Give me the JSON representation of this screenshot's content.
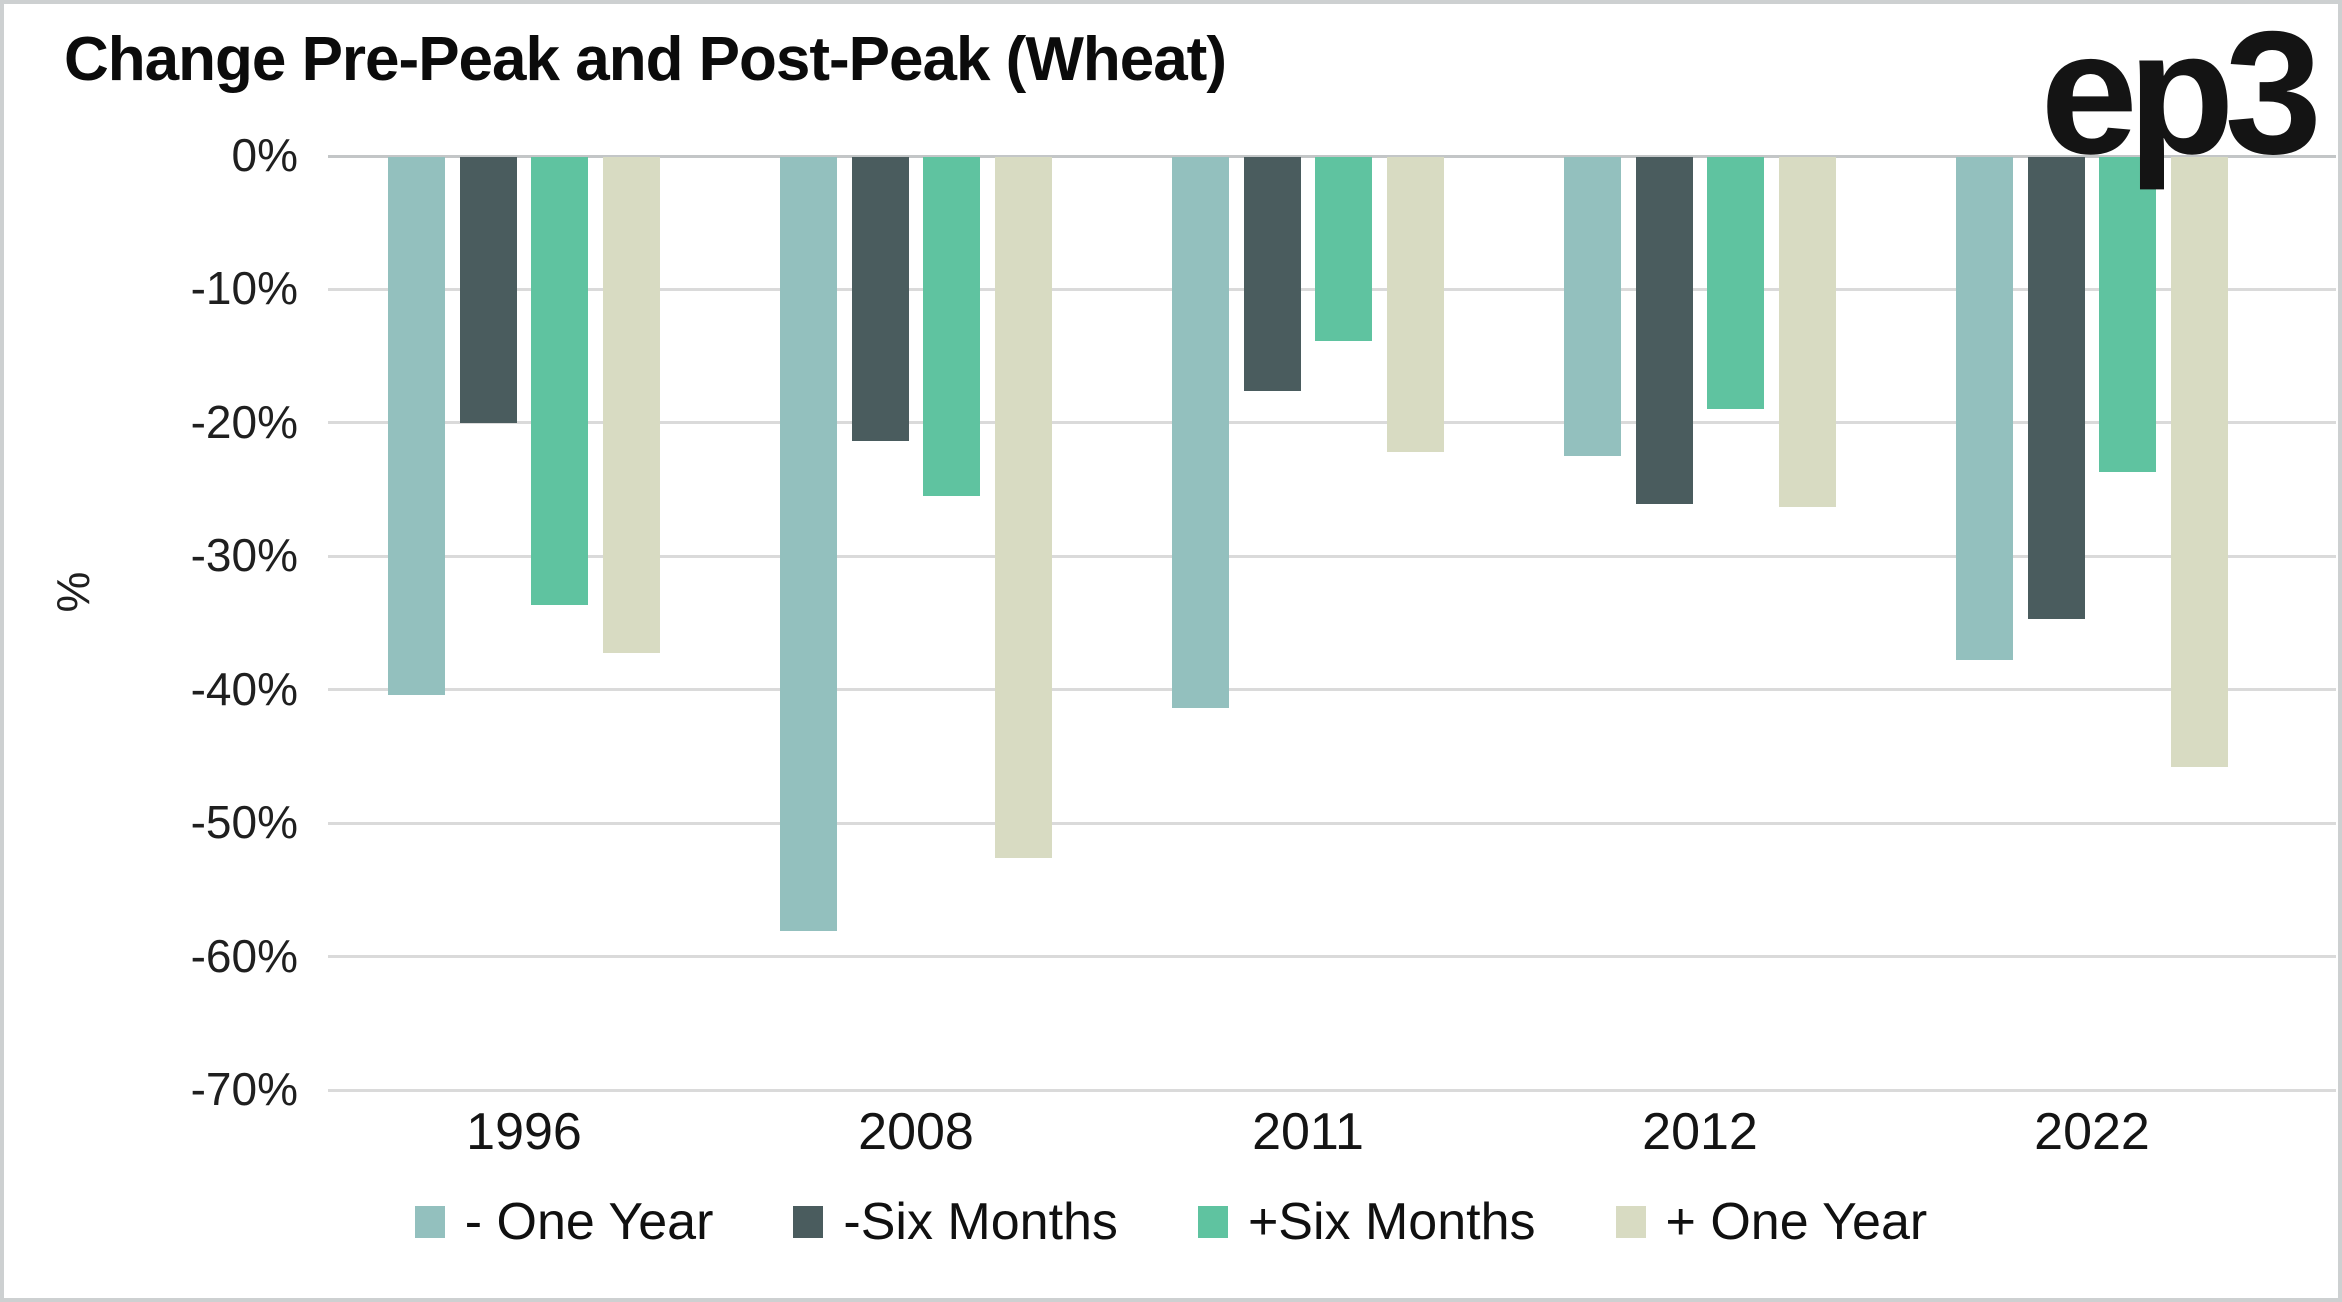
{
  "title": "Change Pre-Peak and Post-Peak (Wheat)",
  "logo": "ep3",
  "chart_data": {
    "type": "bar",
    "title": "Change Pre-Peak and Post-Peak (Wheat)",
    "categories": [
      "1996",
      "2008",
      "2011",
      "2012",
      "2022"
    ],
    "series": [
      {
        "name": "- One Year",
        "color": "#93c0be",
        "values": [
          -40.3,
          -58.0,
          -41.3,
          -22.4,
          -37.7
        ]
      },
      {
        "name": "-Six Months",
        "color": "#4a5c5e",
        "values": [
          -19.9,
          -21.3,
          -17.5,
          -26.0,
          -34.6
        ]
      },
      {
        "name": "+Six Months",
        "color": "#5fc3a0",
        "values": [
          -33.6,
          -25.4,
          -13.8,
          -18.9,
          -23.6
        ]
      },
      {
        "name": "+ One Year",
        "color": "#d8dbc2",
        "values": [
          -37.2,
          -52.5,
          -22.1,
          -26.2,
          -45.7
        ]
      }
    ],
    "xlabel": "",
    "ylabel": "%",
    "ylim": [
      -70,
      0
    ],
    "yticks": [
      "0%",
      "-10%",
      "-20%",
      "-30%",
      "-40%",
      "-50%",
      "-60%",
      "-70%"
    ],
    "grid": true,
    "legend_position": "bottom"
  }
}
